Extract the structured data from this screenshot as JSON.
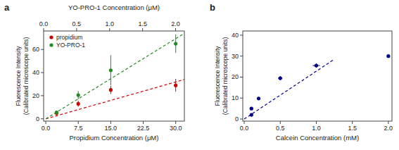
{
  "chart_data": [
    {
      "type": "scatter",
      "title": "a",
      "x_label": "Propidium Concentration (μM)",
      "x2_label": "YO-PRO-1 Concentration (μM)",
      "y_label": "Fluorescence Intensity\n(Calibrated microscope units)",
      "xlim": [
        -0.5,
        32
      ],
      "xticks": [
        {
          "value": 0.0,
          "label": "0.0"
        },
        7.5,
        {
          "value": 15.0,
          "label": "15.0"
        },
        22.5,
        {
          "value": 30.0,
          "label": "30.0"
        }
      ],
      "x2lim": [
        0,
        2.133
      ],
      "x2ticks": [
        {
          "value": 0.0,
          "label": "0.0"
        },
        0.5,
        {
          "value": 1.0,
          "label": "1.0"
        },
        1.5,
        {
          "value": 2.0,
          "label": "2.0"
        }
      ],
      "ylim": [
        -2,
        76
      ],
      "yticks": [
        0,
        20,
        40,
        60
      ],
      "grid": false,
      "legend": "upper left",
      "series": [
        {
          "type": "line",
          "line_style": "dashed",
          "color": "#cc0000",
          "x": [
            0,
            32
          ],
          "values": [
            0,
            34
          ]
        },
        {
          "type": "line",
          "line_style": "dashed",
          "color": "#228B22",
          "x": [
            0,
            32
          ],
          "values": [
            0,
            74
          ]
        },
        {
          "name": "propidium",
          "type": "scatter",
          "marker": "circle",
          "color": "#cc0000",
          "x": [
            2.5,
            7.5,
            15.0,
            30.0
          ],
          "values": [
            5.0,
            13.0,
            25.0,
            29.0
          ],
          "yerr": [
            2.0,
            2.5,
            3.5,
            5.5
          ]
        },
        {
          "name": "YO-PRO-1",
          "type": "scatter",
          "marker": "circle",
          "color": "#228B22",
          "x": [
            2.5,
            7.5,
            15.0,
            30.0
          ],
          "values": [
            5.5,
            20.5,
            42.0,
            65.0
          ],
          "yerr": [
            1.5,
            3.5,
            13.0,
            8.0
          ]
        }
      ]
    },
    {
      "type": "scatter",
      "title": "b",
      "x_label": "Calcein Concentration (mM)",
      "y_label": "Fluorescence Intensity\n(Calibrated microscope units)",
      "xlim": [
        -0.02,
        2.05
      ],
      "xticks": [
        {
          "value": 0.0,
          "label": "0.0"
        },
        0.5,
        {
          "value": 1.0,
          "label": "1.0"
        },
        1.5,
        {
          "value": 2.0,
          "label": "2.0"
        }
      ],
      "ylim": [
        -1,
        42
      ],
      "yticks": [
        0,
        10,
        20,
        30,
        40
      ],
      "grid": false,
      "series": [
        {
          "type": "line",
          "line_style": "dashed",
          "color": "#00008B",
          "x": [
            0.0,
            1.25
          ],
          "values": [
            0.0,
            28.5
          ]
        },
        {
          "type": "scatter",
          "marker": "circle",
          "color": "#00008B",
          "x": [
            0.1,
            0.1,
            0.2,
            0.5,
            1.0,
            2.0
          ],
          "values": [
            2.0,
            5.0,
            9.8,
            19.5,
            25.5,
            30.0
          ],
          "yerr": [
            0.5,
            0.5,
            0.5,
            1.0,
            1.0,
            0.5
          ],
          "xerr": [
            0.02,
            0.02,
            0.02,
            0.03,
            0.05,
            0.0
          ]
        }
      ]
    }
  ]
}
